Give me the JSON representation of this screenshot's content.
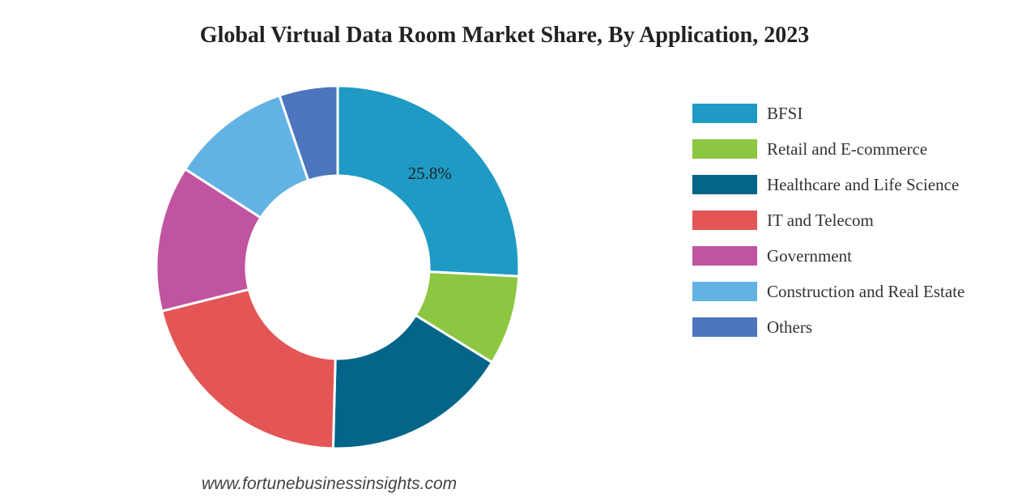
{
  "chart_data": {
    "type": "pie",
    "variant": "donut",
    "title": "Global Virtual Data Room Market Share, By Application, 2023",
    "legend_position": "right",
    "series": [
      {
        "label": "BFSI",
        "value": 25.8,
        "color": "#1f9ac4",
        "data_label": "25.8%"
      },
      {
        "label": "Retail and E-commerce",
        "value": 8.0,
        "color": "#8dc641"
      },
      {
        "label": "Healthcare and Life Science",
        "value": 16.6,
        "color": "#046589"
      },
      {
        "label": "IT and Telecom",
        "value": 20.7,
        "color": "#e35655"
      },
      {
        "label": "Government",
        "value": 13.0,
        "color": "#c054a0"
      },
      {
        "label": "Construction and Real Estate",
        "value": 10.7,
        "color": "#62b3e4"
      },
      {
        "label": "Others",
        "value": 5.2,
        "color": "#4d75bd"
      }
    ]
  },
  "source_text": "www.fortunebusinessinsights.com"
}
